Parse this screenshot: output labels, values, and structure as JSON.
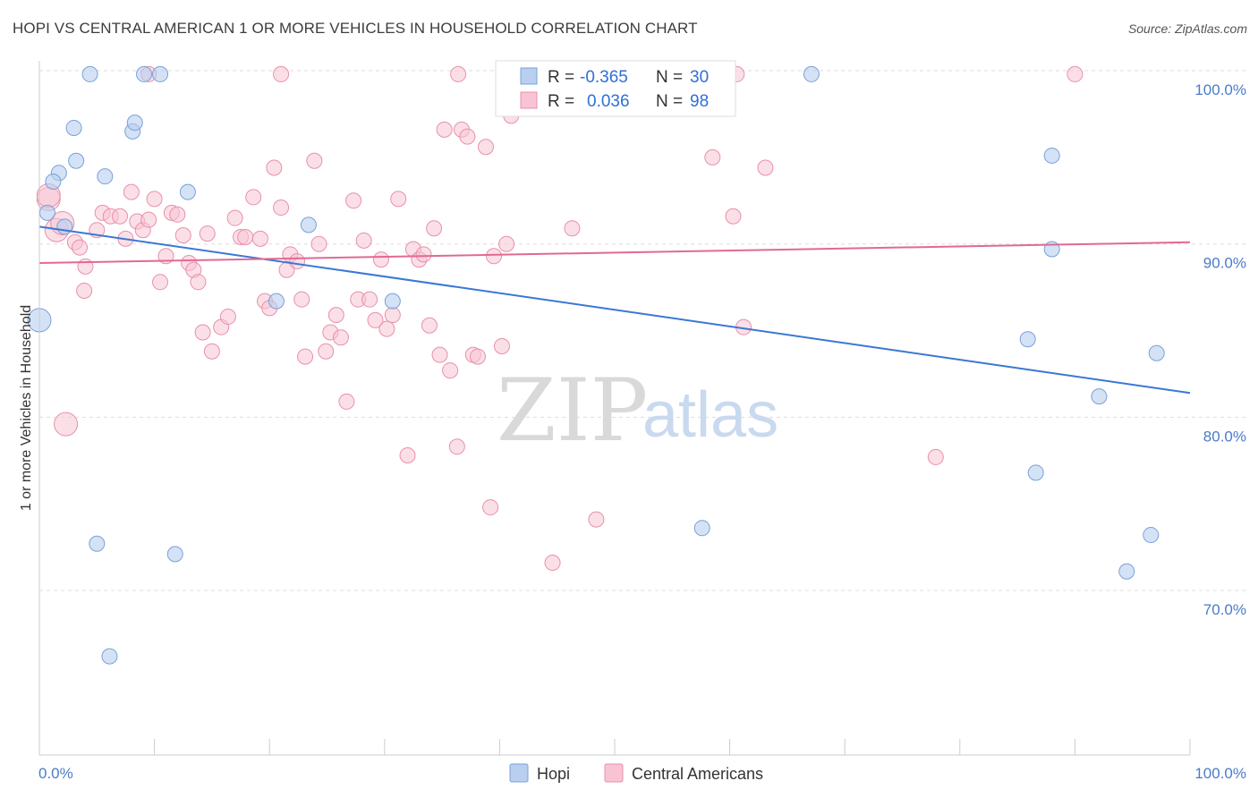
{
  "title": "HOPI VS CENTRAL AMERICAN 1 OR MORE VEHICLES IN HOUSEHOLD CORRELATION CHART",
  "source": "Source: ZipAtlas.com",
  "watermark": {
    "part1": "ZIP",
    "part2": "atlas"
  },
  "colors": {
    "hopi_fill": "#b8cff0",
    "hopi_stroke": "#7aa0d8",
    "hopi_line": "#3a78d4",
    "central_fill": "#f8c4d4",
    "central_stroke": "#e890ac",
    "central_line": "#e06a93",
    "grid": "#dddddd",
    "axis_label": "#4a7cc7"
  },
  "legend": {
    "rows": [
      {
        "r_label": "R =",
        "r_value": "-0.365",
        "n_label": "N =",
        "n_value": "30"
      },
      {
        "r_label": "R =",
        "r_value": "0.036",
        "n_label": "N =",
        "n_value": "98"
      }
    ]
  },
  "bottom_legend": [
    "Hopi",
    "Central Americans"
  ],
  "chart_data": {
    "type": "scatter",
    "title": "HOPI VS CENTRAL AMERICAN 1 OR MORE VEHICLES IN HOUSEHOLD CORRELATION CHART",
    "xlabel": "",
    "ylabel": "1 or more Vehicles in Household",
    "xlim": [
      0,
      100
    ],
    "ylim": [
      60.5,
      101.5
    ],
    "x_tick_labels": [
      "0.0%",
      "100.0%"
    ],
    "y_ticks": [
      100,
      90,
      80,
      70
    ],
    "y_tick_labels": [
      "100.0%",
      "90.0%",
      "80.0%",
      "70.0%"
    ],
    "grid": true,
    "legend_placement": "top-center",
    "series": [
      {
        "name": "Hopi",
        "trend": {
          "x": [
            0,
            100
          ],
          "y": [
            91.0,
            81.4
          ]
        },
        "points": [
          [
            4.4,
            99.8
          ],
          [
            9.1,
            99.8
          ],
          [
            10.5,
            99.8
          ],
          [
            67.1,
            99.8
          ],
          [
            3.0,
            96.7
          ],
          [
            8.1,
            96.5
          ],
          [
            8.3,
            97.0
          ],
          [
            3.2,
            94.8
          ],
          [
            1.7,
            94.1
          ],
          [
            1.2,
            93.6
          ],
          [
            5.7,
            93.9
          ],
          [
            12.9,
            93.0
          ],
          [
            0.7,
            91.8
          ],
          [
            2.2,
            91.0
          ],
          [
            23.4,
            91.1
          ],
          [
            0.0,
            85.6
          ],
          [
            20.6,
            86.7
          ],
          [
            30.7,
            86.7
          ],
          [
            88.0,
            95.1
          ],
          [
            88.0,
            89.7
          ],
          [
            85.9,
            84.5
          ],
          [
            97.1,
            83.7
          ],
          [
            92.1,
            81.2
          ],
          [
            86.6,
            76.8
          ],
          [
            57.6,
            73.6
          ],
          [
            5.0,
            72.7
          ],
          [
            11.8,
            72.1
          ],
          [
            96.6,
            73.2
          ],
          [
            94.5,
            71.1
          ],
          [
            6.1,
            66.2
          ]
        ]
      },
      {
        "name": "Central Americans",
        "trend": {
          "x": [
            0,
            100
          ],
          "y": [
            88.9,
            90.1
          ]
        },
        "points": [
          [
            0.8,
            92.6
          ],
          [
            0.8,
            92.8
          ],
          [
            1.5,
            90.8
          ],
          [
            2.0,
            91.2
          ],
          [
            3.1,
            90.1
          ],
          [
            3.5,
            89.8
          ],
          [
            4.0,
            88.7
          ],
          [
            3.9,
            87.3
          ],
          [
            2.3,
            79.6
          ],
          [
            5.0,
            90.8
          ],
          [
            5.5,
            91.8
          ],
          [
            6.2,
            91.6
          ],
          [
            7.0,
            91.6
          ],
          [
            7.5,
            90.3
          ],
          [
            8.0,
            93.0
          ],
          [
            8.5,
            91.3
          ],
          [
            9.0,
            90.8
          ],
          [
            9.5,
            91.4
          ],
          [
            10.0,
            92.6
          ],
          [
            10.5,
            87.8
          ],
          [
            11.0,
            89.3
          ],
          [
            11.5,
            91.8
          ],
          [
            12.0,
            91.7
          ],
          [
            12.5,
            90.5
          ],
          [
            13.0,
            88.9
          ],
          [
            13.4,
            88.5
          ],
          [
            13.8,
            87.8
          ],
          [
            14.2,
            84.9
          ],
          [
            14.6,
            90.6
          ],
          [
            15.0,
            83.8
          ],
          [
            15.8,
            85.2
          ],
          [
            16.4,
            85.8
          ],
          [
            17.0,
            91.5
          ],
          [
            17.5,
            90.4
          ],
          [
            17.9,
            90.4
          ],
          [
            18.6,
            92.7
          ],
          [
            19.2,
            90.3
          ],
          [
            19.6,
            86.7
          ],
          [
            20.0,
            86.3
          ],
          [
            20.4,
            94.4
          ],
          [
            21.0,
            92.1
          ],
          [
            21.5,
            88.5
          ],
          [
            21.8,
            89.4
          ],
          [
            22.4,
            89.0
          ],
          [
            22.8,
            86.8
          ],
          [
            23.1,
            83.5
          ],
          [
            23.9,
            94.8
          ],
          [
            24.3,
            90.0
          ],
          [
            24.9,
            83.8
          ],
          [
            25.3,
            84.9
          ],
          [
            25.8,
            85.9
          ],
          [
            26.2,
            84.6
          ],
          [
            26.7,
            80.9
          ],
          [
            27.3,
            92.5
          ],
          [
            27.7,
            86.8
          ],
          [
            28.2,
            90.2
          ],
          [
            28.7,
            86.8
          ],
          [
            29.2,
            85.6
          ],
          [
            29.7,
            89.1
          ],
          [
            30.2,
            85.1
          ],
          [
            30.7,
            85.9
          ],
          [
            31.2,
            92.6
          ],
          [
            32.0,
            77.8
          ],
          [
            32.5,
            89.7
          ],
          [
            33.0,
            89.1
          ],
          [
            33.4,
            89.4
          ],
          [
            33.9,
            85.3
          ],
          [
            34.3,
            90.9
          ],
          [
            34.8,
            83.6
          ],
          [
            35.2,
            96.6
          ],
          [
            35.7,
            82.7
          ],
          [
            36.3,
            78.3
          ],
          [
            36.7,
            96.6
          ],
          [
            37.2,
            96.2
          ],
          [
            37.7,
            83.6
          ],
          [
            38.1,
            83.5
          ],
          [
            38.8,
            95.6
          ],
          [
            39.2,
            74.8
          ],
          [
            39.5,
            89.3
          ],
          [
            40.2,
            84.1
          ],
          [
            40.6,
            90.0
          ],
          [
            41.0,
            97.4
          ],
          [
            44.6,
            71.6
          ],
          [
            46.3,
            90.9
          ],
          [
            48.4,
            74.1
          ],
          [
            51.6,
            99.8
          ],
          [
            58.5,
            95.0
          ],
          [
            60.3,
            91.6
          ],
          [
            60.6,
            99.8
          ],
          [
            61.2,
            85.2
          ],
          [
            63.1,
            94.4
          ],
          [
            77.9,
            77.7
          ],
          [
            90.0,
            99.8
          ],
          [
            55.1,
            99.8
          ],
          [
            48.5,
            99.8
          ],
          [
            21.0,
            99.8
          ],
          [
            36.4,
            99.8
          ],
          [
            9.5,
            99.8
          ]
        ]
      }
    ]
  }
}
